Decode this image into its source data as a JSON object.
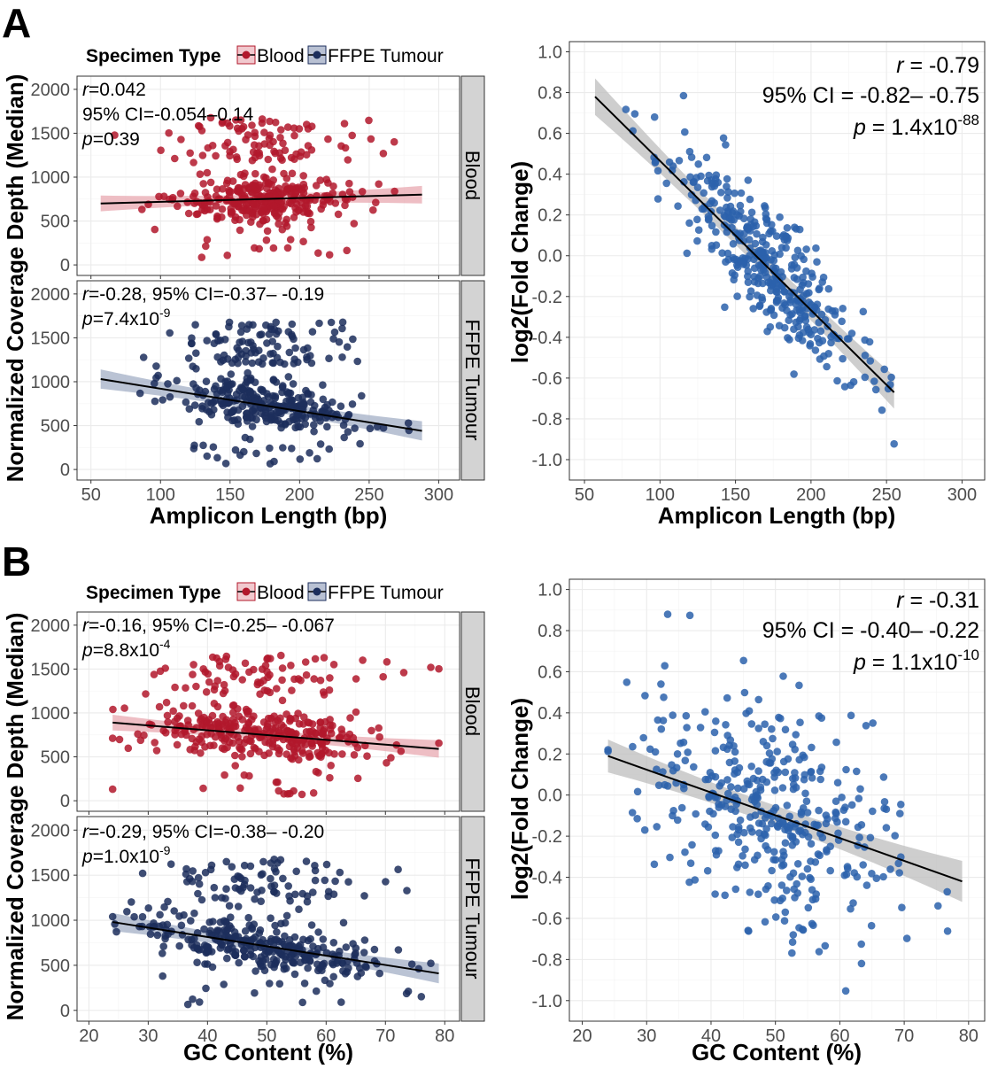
{
  "panel_labels": [
    "A",
    "B"
  ],
  "legend": {
    "title": "Specimen Type",
    "items": [
      {
        "label": "Blood",
        "color": "#b2182b"
      },
      {
        "label": "FFPE Tumour",
        "color": "#1c2e5c"
      }
    ]
  },
  "chart_data": [
    {
      "id": "A-left",
      "type": "scatter",
      "facets": [
        "Blood",
        "FFPE Tumour"
      ],
      "xlabel": "Amplicon Length (bp)",
      "ylabel": "Normalized Coverage Depth (Median)",
      "xlim": [
        40,
        315
      ],
      "ylim": [
        -120,
        2150
      ],
      "xticks": [
        50,
        100,
        150,
        200,
        250,
        300
      ],
      "yticks": [
        0,
        500,
        1000,
        1500,
        2000
      ],
      "series": [
        {
          "name": "Blood",
          "color": "#b2182b",
          "fit": {
            "x0": 57,
            "y0": 700,
            "x1": 288,
            "y1": 800,
            "band_start": 90,
            "band_mid": 40,
            "band_end": 100
          },
          "annotation": [
            {
              "r": "r",
              "rest": "=0.042"
            },
            {
              "text": "95% CI=-0.054–0.14"
            },
            {
              "p": "p",
              "rest": "=0.39"
            }
          ]
        },
        {
          "name": "FFPE Tumour",
          "color": "#1c2e5c",
          "fit": {
            "x0": 57,
            "y0": 1030,
            "x1": 288,
            "y1": 440,
            "band_start": 110,
            "band_mid": 45,
            "band_end": 110
          },
          "annotation": [
            {
              "r": "r",
              "rest": "=-0.28, 95% CI=-0.37– -0.19"
            },
            {
              "p": "p",
              "rest": "=7.4x10",
              "sup": "-9"
            }
          ]
        }
      ]
    },
    {
      "id": "A-right",
      "type": "scatter",
      "xlabel": "Amplicon Length (bp)",
      "ylabel": "log2(Fold Change)",
      "xlim": [
        40,
        315
      ],
      "ylim": [
        -1.1,
        1.05
      ],
      "xticks": [
        50,
        100,
        150,
        200,
        250,
        300
      ],
      "yticks": [
        -1.0,
        -0.8,
        -0.6,
        -0.4,
        -0.2,
        0.0,
        0.2,
        0.4,
        0.6,
        0.8,
        1.0
      ],
      "series": [
        {
          "name": "log2FC",
          "color": "#2c62ac",
          "fit": {
            "x0": 57,
            "y0": 0.78,
            "x1": 255,
            "y1": -0.67,
            "band_start": 0.09,
            "band_mid": 0.02,
            "band_end": 0.08
          }
        }
      ],
      "annotation": [
        "r = -0.79",
        "95% CI = -0.82– -0.75",
        "p = 1.4x10-88"
      ],
      "stats": {
        "r_label": "r",
        "r_value": " = -0.79",
        "ci": "95% CI = -0.82– -0.75",
        "p_label": "p",
        "p_value": " = 1.4x10",
        "p_exp": "-88"
      }
    },
    {
      "id": "B-left",
      "type": "scatter",
      "facets": [
        "Blood",
        "FFPE Tumour"
      ],
      "xlabel": "GC Content (%)",
      "ylabel": "Normalized Coverage Depth (Median)",
      "xlim": [
        18,
        82.5
      ],
      "ylim": [
        -120,
        2150
      ],
      "xticks": [
        20,
        30,
        40,
        50,
        60,
        70,
        80
      ],
      "yticks": [
        0,
        500,
        1000,
        1500,
        2000
      ],
      "series": [
        {
          "name": "Blood",
          "color": "#b2182b",
          "fit": {
            "x0": 24,
            "y0": 890,
            "x1": 79,
            "y1": 590,
            "band_start": 90,
            "band_mid": 35,
            "band_end": 100
          },
          "annotation": [
            {
              "r": "r",
              "rest": "=-0.16, 95% CI=-0.25– -0.067"
            },
            {
              "p": "p",
              "rest": "=8.8x10",
              "sup": "-4"
            }
          ]
        },
        {
          "name": "FFPE Tumour",
          "color": "#1c2e5c",
          "fit": {
            "x0": 24,
            "y0": 980,
            "x1": 79,
            "y1": 410,
            "band_start": 100,
            "band_mid": 40,
            "band_end": 110
          },
          "annotation": [
            {
              "r": "r",
              "rest": "=-0.29, 95% CI=-0.38– -0.20"
            },
            {
              "p": "p",
              "rest": "=1.0x10",
              "sup": "-9"
            }
          ]
        }
      ]
    },
    {
      "id": "B-right",
      "type": "scatter",
      "xlabel": "GC Content (%)",
      "ylabel": "log2(Fold Change)",
      "xlim": [
        18,
        82.5
      ],
      "ylim": [
        -1.1,
        1.05
      ],
      "xticks": [
        20,
        30,
        40,
        50,
        60,
        70,
        80
      ],
      "yticks": [
        -1.0,
        -0.8,
        -0.6,
        -0.4,
        -0.2,
        0.0,
        0.2,
        0.4,
        0.6,
        0.8,
        1.0
      ],
      "series": [
        {
          "name": "log2FC",
          "color": "#2c62ac",
          "fit": {
            "x0": 24,
            "y0": 0.19,
            "x1": 79,
            "y1": -0.42,
            "band_start": 0.08,
            "band_mid": 0.02,
            "band_end": 0.1
          }
        }
      ],
      "annotation": [
        "r = -0.31",
        "95% CI = -0.40– -0.22",
        "p = 1.1x10-10"
      ],
      "stats": {
        "r_label": "r",
        "r_value": " = -0.31",
        "ci": "95% CI = -0.40– -0.22",
        "p_label": "p",
        "p_value": " = 1.1x10",
        "p_exp": "-10"
      }
    }
  ]
}
